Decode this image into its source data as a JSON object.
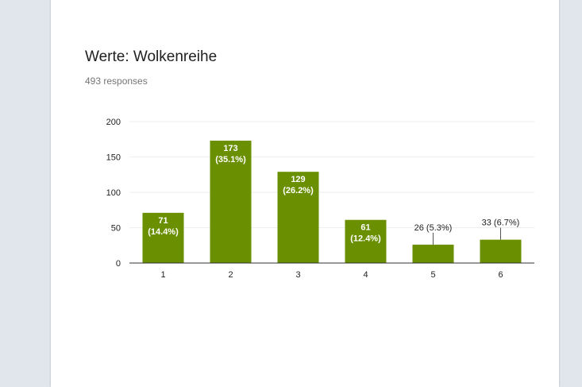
{
  "card": {
    "title": "Werte: Wolkenreihe",
    "subtitle": "493 responses"
  },
  "colors": {
    "background": "#e0e6ec",
    "card": "#ffffff",
    "bar": "#6a8f00",
    "grid": "#eeeeee",
    "axis": "#333333"
  },
  "chart_data": {
    "type": "bar",
    "title": "Werte: Wolkenreihe",
    "subtitle": "493 responses",
    "xlabel": "",
    "ylabel": "",
    "categories": [
      "1",
      "2",
      "3",
      "4",
      "5",
      "6"
    ],
    "values": [
      71,
      173,
      129,
      61,
      26,
      33
    ],
    "data_labels": [
      [
        "71",
        "(14.4%)"
      ],
      [
        "173",
        "(35.1%)"
      ],
      [
        "129",
        "(26.2%)"
      ],
      [
        "61",
        "(12.4%)"
      ],
      [
        "26 (5.3%)"
      ],
      [
        "33 (6.7%)"
      ]
    ],
    "label_inside": [
      true,
      true,
      true,
      true,
      false,
      false
    ],
    "ylim": [
      0,
      200
    ],
    "yticks": [
      0,
      50,
      100,
      150,
      200
    ],
    "grid": true,
    "legend": "none"
  }
}
